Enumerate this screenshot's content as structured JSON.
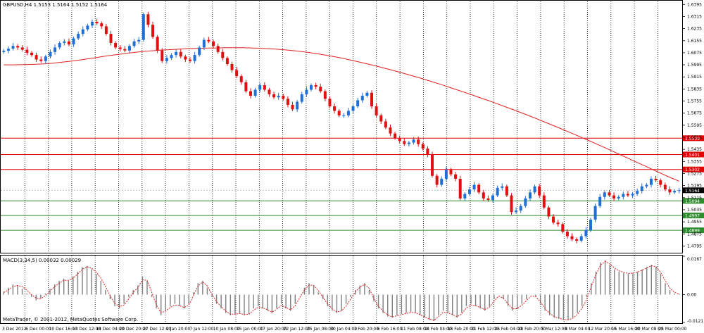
{
  "chart_data": [
    {
      "type": "candlestick",
      "title": "GBPUSD,H4  1.5153 1.5164 1.5152 1.5164",
      "ylim": [
        1.4755,
        1.6415
      ],
      "y_ticks": [
        "1.6395",
        "1.6315",
        "1.6235",
        "1.6155",
        "1.6075",
        "1.5995",
        "1.5915",
        "1.5835",
        "1.5755",
        "1.5675",
        "1.5595",
        "1.5515",
        "1.5435",
        "1.5355",
        "1.5275",
        "1.5195",
        "1.5115",
        "1.5035",
        "1.4955",
        "1.4875",
        "1.4795"
      ],
      "x_ticks": [
        "3 Dec 2012",
        "6 Dec 00:00",
        "10 Dec 16:00",
        "13 Dec 12:00",
        "18 Dec 04:00",
        "20 Dec 20:00",
        "27 Dec 12:00",
        "2 Jan 20:00",
        "7 Jan 12:00",
        "10 Jan 08:00",
        "15 Jan 00:00",
        "17 Jan 20:00",
        "22 Jan 12:00",
        "25 Jan 08:00",
        "30 Jan 04:00",
        "1 Feb 20:00",
        "6 Feb 16:00",
        "11 Feb 08:00",
        "14 Feb 04:00",
        "18 Feb 20:00",
        "21 Feb 12:00",
        "26 Feb 04:00",
        "28 Feb 20:00",
        "5 Mar 12:00",
        "8 Mar 04:00",
        "12 Mar 20:00",
        "15 Mar 16:00",
        "20 Mar 08:00",
        "25 Mar 00:00"
      ],
      "current_price": "1.5164",
      "levels": [
        {
          "label": "1.5509",
          "value": 1.5509,
          "color": "#e00000"
        },
        {
          "label": "1.5401",
          "value": 1.5401,
          "color": "#e00000"
        },
        {
          "label": "1.5302",
          "value": 1.5302,
          "color": "#e00000"
        },
        {
          "label": "1.5094",
          "value": 1.5094,
          "color": "#2e8b2e"
        },
        {
          "label": "1.4997",
          "value": 1.4997,
          "color": "#2e8b2e"
        },
        {
          "label": "1.4899",
          "value": 1.4899,
          "color": "#2e8b2e"
        }
      ],
      "series": [
        {
          "type": "candlestick",
          "close": [
            1.6088,
            1.6102,
            1.612,
            1.611,
            1.6095,
            1.6075,
            1.606,
            1.603,
            1.602,
            1.605,
            1.608,
            1.611,
            1.614,
            1.615,
            1.613,
            1.617,
            1.62,
            1.623,
            1.6255,
            1.628,
            1.627,
            1.625,
            1.62,
            1.614,
            1.611,
            1.61,
            1.609,
            1.612,
            1.615,
            1.616,
            1.633,
            1.626,
            1.618,
            1.609,
            1.602,
            1.604,
            1.606,
            1.608,
            1.605,
            1.603,
            1.602,
            1.606,
            1.611,
            1.616,
            1.615,
            1.612,
            1.608,
            1.604,
            1.6,
            1.596,
            1.592,
            1.588,
            1.582,
            1.579,
            1.583,
            1.586,
            1.583,
            1.58,
            1.578,
            1.579,
            1.577,
            1.573,
            1.57,
            1.575,
            1.58,
            1.583,
            1.586,
            1.585,
            1.582,
            1.577,
            1.572,
            1.569,
            1.566,
            1.566,
            1.569,
            1.572,
            1.576,
            1.579,
            1.581,
            1.572,
            1.566,
            1.562,
            1.558,
            1.554,
            1.551,
            1.549,
            1.547,
            1.548,
            1.55,
            1.547,
            1.544,
            1.54,
            1.526,
            1.52,
            1.524,
            1.53,
            1.527,
            1.524,
            1.511,
            1.514,
            1.517,
            1.52,
            1.515,
            1.511,
            1.51,
            1.513,
            1.518,
            1.519,
            1.513,
            1.502,
            1.503,
            1.506,
            1.511,
            1.515,
            1.519,
            1.513,
            1.505,
            1.499,
            1.495,
            1.494,
            1.489,
            1.486,
            1.484,
            1.483,
            1.486,
            1.49,
            1.497,
            1.506,
            1.512,
            1.515,
            1.513,
            1.511,
            1.512,
            1.514,
            1.513,
            1.514,
            1.516,
            1.519,
            1.52,
            1.524,
            1.523,
            1.52,
            1.517,
            1.515,
            1.516,
            1.5164
          ],
          "sma": [
            1.5995,
            1.5995,
            1.5996,
            1.5997,
            1.5999,
            1.6002,
            1.6006,
            1.6012,
            1.6018,
            1.6025,
            1.6033,
            1.6041,
            1.605,
            1.6058,
            1.6065,
            1.6072,
            1.6078,
            1.6084,
            1.6088,
            1.6092,
            1.6095,
            1.6098,
            1.6101,
            1.6103,
            1.6105,
            1.6106,
            1.6107,
            1.6108,
            1.6108,
            1.6108,
            1.6107,
            1.6105,
            1.6102,
            1.6099,
            1.6095,
            1.609,
            1.6084,
            1.6077,
            1.6069,
            1.606,
            1.605,
            1.604,
            1.6028,
            1.6016,
            1.6003,
            1.599,
            1.5976,
            1.5962,
            1.5947,
            1.5932,
            1.5916,
            1.59,
            1.5883,
            1.5866,
            1.5848,
            1.583,
            1.5812,
            1.5793,
            1.5774,
            1.5755,
            1.5735,
            1.5715,
            1.5695,
            1.5674,
            1.5653,
            1.5631,
            1.5609,
            1.5587,
            1.5564,
            1.5541,
            1.5518,
            1.5494,
            1.547,
            1.5446,
            1.5421,
            1.5396,
            1.5371,
            1.5346,
            1.5321,
            1.5296,
            1.5271,
            1.5247,
            1.5224
          ]
        }
      ]
    },
    {
      "type": "bar",
      "title": "MACD(3,34,5) 0.00032 0.00029",
      "ylim": [
        -0.0121,
        0.0167
      ],
      "y_ticks": [
        "0.0167",
        "0.00",
        "-0.0121"
      ],
      "series": [
        {
          "name": "MACD",
          "type": "bar",
          "values": [
            0.0012,
            0.003,
            0.0045,
            0.004,
            0.0025,
            0.0005,
            -0.001,
            -0.0025,
            -0.0015,
            0.0005,
            0.0025,
            0.0045,
            0.006,
            0.007,
            0.006,
            0.008,
            0.01,
            0.012,
            0.0125,
            0.011,
            0.009,
            0.006,
            0.002,
            -0.002,
            -0.005,
            -0.006,
            -0.004,
            -0.001,
            0.002,
            0.004,
            0.008,
            0.006,
            -0.001,
            -0.006,
            -0.009,
            -0.007,
            -0.005,
            -0.004,
            -0.005,
            -0.006,
            -0.004,
            0.001,
            0.005,
            0.006,
            0.003,
            -0.001,
            -0.004,
            -0.006,
            -0.008,
            -0.009,
            -0.0085,
            -0.008,
            -0.009,
            -0.0085,
            -0.006,
            -0.005,
            -0.006,
            -0.007,
            -0.008,
            -0.006,
            -0.004,
            -0.006,
            -0.007,
            -0.004,
            0.0,
            0.003,
            0.005,
            0.004,
            0.001,
            -0.002,
            -0.005,
            -0.007,
            -0.008,
            -0.007,
            -0.004,
            -0.001,
            0.002,
            0.004,
            0.005,
            0.002,
            -0.003,
            -0.006,
            -0.008,
            -0.0095,
            -0.01,
            -0.009,
            -0.0085,
            -0.008,
            -0.0075,
            -0.008,
            -0.009,
            -0.01,
            -0.011,
            -0.0115,
            -0.009,
            -0.007,
            -0.008,
            -0.009,
            -0.01,
            -0.008,
            -0.005,
            -0.004,
            -0.005,
            -0.006,
            -0.007,
            -0.005,
            -0.002,
            0.0,
            -0.002,
            -0.005,
            -0.007,
            -0.006,
            -0.004,
            -0.002,
            0.0,
            -0.001,
            -0.004,
            -0.007,
            -0.009,
            -0.01,
            -0.0105,
            -0.011,
            -0.011,
            -0.01,
            -0.008,
            -0.005,
            -0.001,
            0.005,
            0.01,
            0.014,
            0.015,
            0.013,
            0.011,
            0.01,
            0.0095,
            0.009,
            0.0095,
            0.01,
            0.011,
            0.012,
            0.013,
            0.012,
            0.009,
            0.005,
            0.002,
            0.0005,
            0.00032
          ]
        },
        {
          "name": "Signal",
          "type": "line",
          "values": [
            0.001,
            0.002,
            0.0035,
            0.004,
            0.0035,
            0.002,
            0.0,
            -0.0015,
            -0.0018,
            -0.0005,
            0.0015,
            0.0035,
            0.005,
            0.0062,
            0.0062,
            0.0072,
            0.009,
            0.011,
            0.0122,
            0.0115,
            0.0098,
            0.0072,
            0.0035,
            -0.0005,
            -0.0038,
            -0.0052,
            -0.0045,
            -0.002,
            0.001,
            0.003,
            0.0065,
            0.0062,
            0.001,
            -0.0045,
            -0.0078,
            -0.0072,
            -0.0055,
            -0.0045,
            -0.0048,
            -0.0056,
            -0.0045,
            -0.0005,
            0.0038,
            0.0055,
            0.0038,
            0.0002,
            -0.003,
            -0.0052,
            -0.0072,
            -0.0085,
            -0.0085,
            -0.0082,
            -0.0087,
            -0.0085,
            -0.0068,
            -0.0055,
            -0.0058,
            -0.0066,
            -0.0076,
            -0.0064,
            -0.0046,
            -0.0056,
            -0.0066,
            -0.0048,
            -0.0012,
            0.002,
            0.0042,
            0.004,
            0.0018,
            -0.0012,
            -0.004,
            -0.0062,
            -0.0075,
            -0.0071,
            -0.005,
            -0.002,
            0.0012,
            0.0032,
            0.0045,
            0.0028,
            -0.0018,
            -0.005,
            -0.0072,
            -0.0088,
            -0.0097,
            -0.0092,
            -0.0087,
            -0.0082,
            -0.0077,
            -0.0079,
            -0.0087,
            -0.0097,
            -0.0106,
            -0.0112,
            -0.0096,
            -0.0077,
            -0.0079,
            -0.0087,
            -0.0096,
            -0.0084,
            -0.0058,
            -0.0045,
            -0.0048,
            -0.0056,
            -0.0065,
            -0.0054,
            -0.0028,
            -0.0006,
            -0.0015,
            -0.004,
            -0.0062,
            -0.0061,
            -0.0046,
            -0.0026,
            -0.0006,
            -0.0008,
            -0.0032,
            -0.006,
            -0.0082,
            -0.0095,
            -0.0102,
            -0.0108,
            -0.011,
            -0.0103,
            -0.0086,
            -0.0059,
            -0.0021,
            0.0036,
            0.0086,
            0.0128,
            0.0144,
            0.0134,
            0.0116,
            0.0104,
            0.0097,
            0.0092,
            0.0094,
            0.0098,
            0.0106,
            0.0116,
            0.0126,
            0.0122,
            0.0097,
            0.006,
            0.0028,
            0.001,
            0.00029
          ]
        }
      ]
    }
  ],
  "footer": {
    "copyright": "MetaTrader, © 2001-2012, MetaQuotes Software Corp."
  },
  "colors": {
    "bull": "#1f6fd6",
    "bear": "#e01010",
    "ma": "#e02020",
    "grid": "#000000",
    "axis": "#000000"
  }
}
